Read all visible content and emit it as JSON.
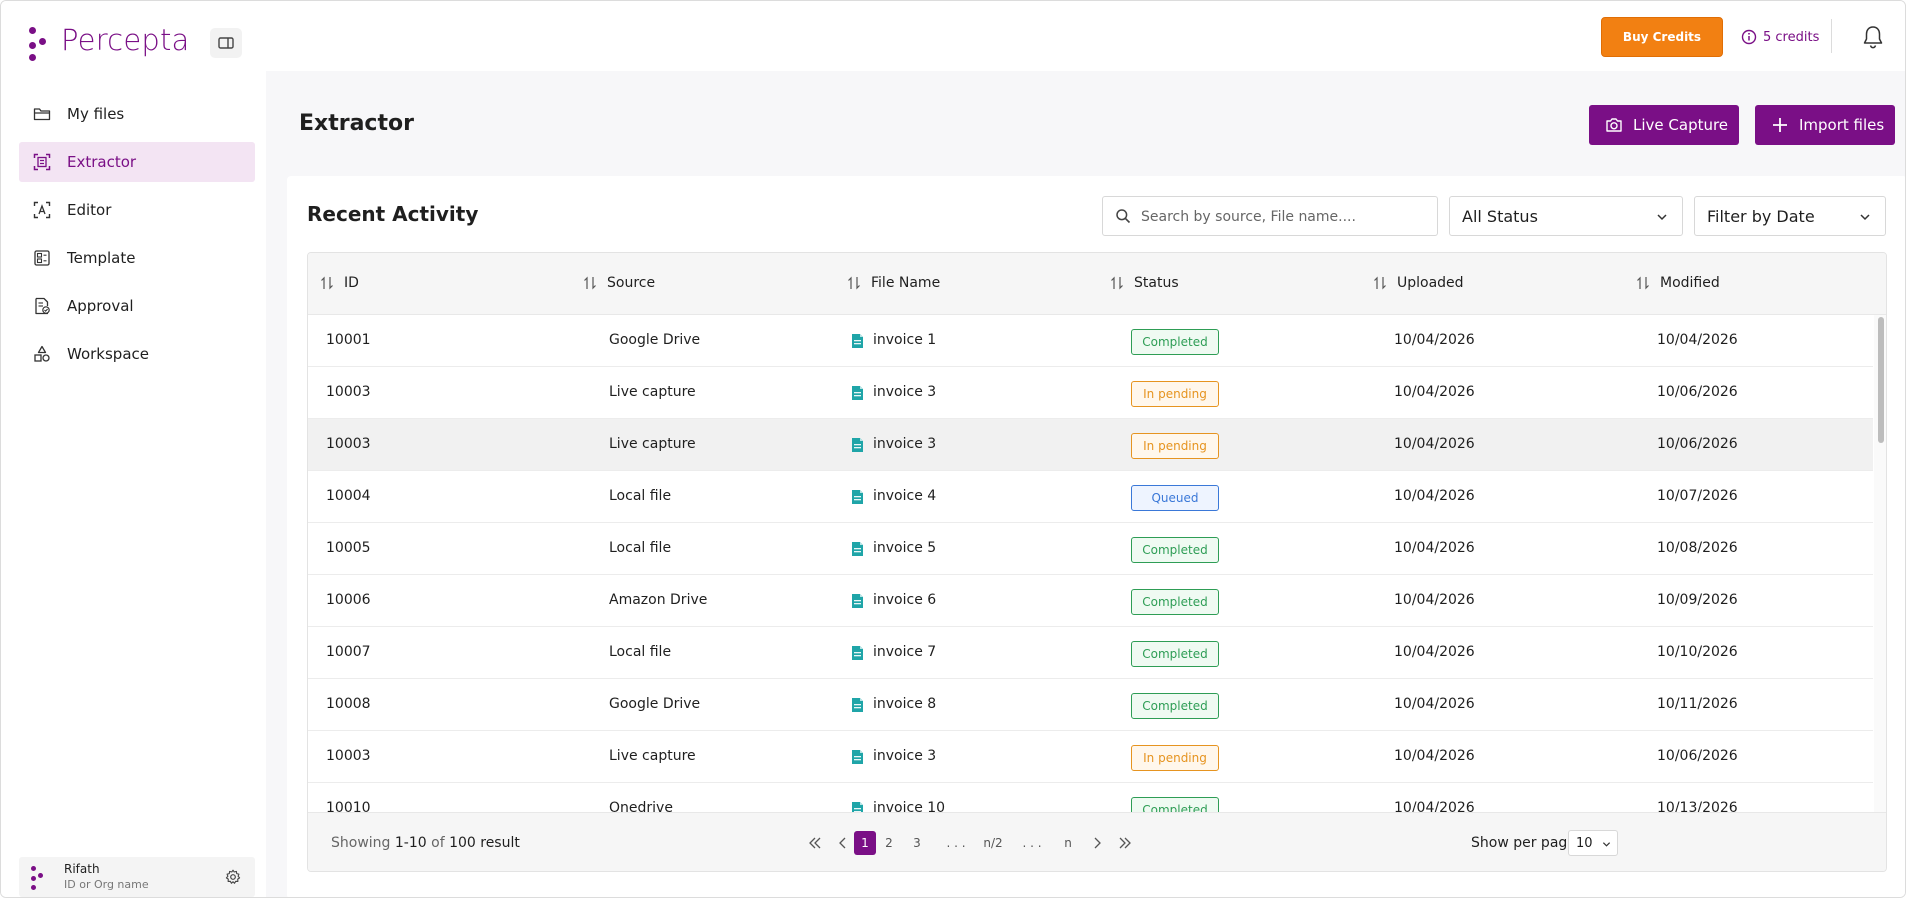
{
  "brand": {
    "name": "Percepta",
    "color": "#7a0f86"
  },
  "header": {
    "buy_credits": "Buy Credits",
    "credits": "5 credits"
  },
  "sidebar": {
    "items": [
      {
        "label": "My files",
        "icon": "folder-icon"
      },
      {
        "label": "Extractor",
        "icon": "scan-icon",
        "active": true
      },
      {
        "label": "Editor",
        "icon": "text-select-icon"
      },
      {
        "label": "Template",
        "icon": "template-icon"
      },
      {
        "label": "Approval",
        "icon": "approval-icon"
      },
      {
        "label": "Workspace",
        "icon": "shapes-icon"
      }
    ],
    "user": {
      "name": "Rifath",
      "org": "ID or Org name"
    }
  },
  "page": {
    "title": "Extractor",
    "live_capture": "Live Capture",
    "import_files": "Import files"
  },
  "activity": {
    "title": "Recent Activity",
    "search_placeholder": "Search by source, File name....",
    "status_filter": "All Status",
    "date_filter": "Filter by Date",
    "columns": [
      "ID",
      "Source",
      "File Name",
      "Status",
      "Uploaded",
      "Modified"
    ],
    "rows": [
      {
        "id": "10001",
        "source": "Google Drive",
        "file": "invoice 1",
        "status": "Completed",
        "status_type": "completed",
        "uploaded": "10/04/2026",
        "modified": "10/04/2026"
      },
      {
        "id": "10003",
        "source": "Live capture",
        "file": "invoice 3",
        "status": "In pending",
        "status_type": "pending",
        "uploaded": "10/04/2026",
        "modified": "10/06/2026"
      },
      {
        "id": "10003",
        "source": "Live capture",
        "file": "invoice 3",
        "status": "In pending",
        "status_type": "pending",
        "uploaded": "10/04/2026",
        "modified": "10/06/2026",
        "highlighted": true
      },
      {
        "id": "10004",
        "source": "Local file",
        "file": "invoice 4",
        "status": "Queued",
        "status_type": "queued",
        "uploaded": "10/04/2026",
        "modified": "10/07/2026"
      },
      {
        "id": "10005",
        "source": "Local file",
        "file": "invoice 5",
        "status": "Completed",
        "status_type": "completed",
        "uploaded": "10/04/2026",
        "modified": "10/08/2026"
      },
      {
        "id": "10006",
        "source": "Amazon Drive",
        "file": "invoice 6",
        "status": "Completed",
        "status_type": "completed",
        "uploaded": "10/04/2026",
        "modified": "10/09/2026"
      },
      {
        "id": "10007",
        "source": "Local file",
        "file": "invoice 7",
        "status": "Completed",
        "status_type": "completed",
        "uploaded": "10/04/2026",
        "modified": "10/10/2026"
      },
      {
        "id": "10008",
        "source": "Google Drive",
        "file": "invoice 8",
        "status": "Completed",
        "status_type": "completed",
        "uploaded": "10/04/2026",
        "modified": "10/11/2026"
      },
      {
        "id": "10003",
        "source": "Live capture",
        "file": "invoice 3",
        "status": "In pending",
        "status_type": "pending",
        "uploaded": "10/04/2026",
        "modified": "10/06/2026"
      },
      {
        "id": "10010",
        "source": "Onedrive",
        "file": "invoice 10",
        "status": "Completed",
        "status_type": "completed",
        "uploaded": "10/04/2026",
        "modified": "10/13/2026"
      }
    ]
  },
  "footer": {
    "showing_prefix": "Showing",
    "range": "1-10",
    "of": "of",
    "total": "100 result",
    "pages": [
      "1",
      "2",
      "3",
      ". . .",
      "n/2",
      ". . .",
      "n"
    ],
    "current_page": "1",
    "per_page_label": "Show per page",
    "per_page_value": "10"
  },
  "colors": {
    "accent": "#7a0f86",
    "buy_credits": "#f28012",
    "completed": "#2e9d55",
    "pending": "#e69420",
    "queued": "#3a78d8"
  }
}
